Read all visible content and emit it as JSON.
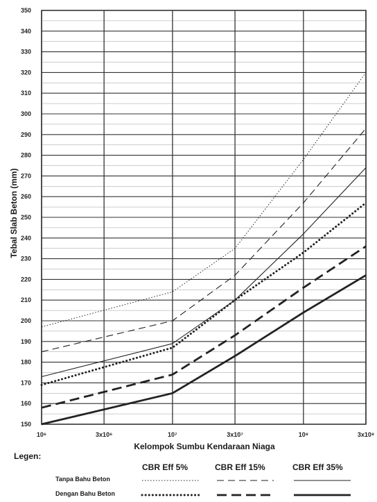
{
  "chart_data": {
    "type": "line",
    "ylabel": "Tebal Slab Beton (mm)",
    "xlabel": "Kelompok Sumbu Kendaraan Niaga",
    "x_scale": "log",
    "x_ticks": [
      {
        "value": 1000000,
        "label": "10⁶"
      },
      {
        "value": 3000000,
        "label": "3x10⁶"
      },
      {
        "value": 10000000,
        "label": "10⁷"
      },
      {
        "value": 30000000,
        "label": "3x10⁷"
      },
      {
        "value": 100000000,
        "label": "10⁸"
      },
      {
        "value": 300000000,
        "label": "3x10⁸"
      }
    ],
    "ylim": [
      150,
      350
    ],
    "y_ticks": [
      {
        "value": 350,
        "label": "350"
      },
      {
        "value": 340,
        "label": "340"
      },
      {
        "value": 330,
        "label": "330"
      },
      {
        "value": 320,
        "label": "320"
      },
      {
        "value": 310,
        "label": "310"
      },
      {
        "value": 300,
        "label": "300"
      },
      {
        "value": 290,
        "label": "290"
      },
      {
        "value": 280,
        "label": "280"
      },
      {
        "value": 270,
        "label": "270"
      },
      {
        "value": 260,
        "label": "260"
      },
      {
        "value": 250,
        "label": "250"
      },
      {
        "value": 240,
        "label": "240"
      },
      {
        "value": 230,
        "label": "230"
      },
      {
        "value": 220,
        "label": "220"
      },
      {
        "value": 210,
        "label": "210"
      },
      {
        "value": 200,
        "label": "200"
      },
      {
        "value": 190,
        "label": "190"
      },
      {
        "value": 180,
        "label": "180"
      },
      {
        "value": 170,
        "label": "170"
      },
      {
        "value": 160,
        "label": "160"
      },
      {
        "value": 150,
        "label": "150"
      }
    ],
    "grid": true,
    "series": [
      {
        "name": "CBR Eff 5% Tanpa Bahu Beton",
        "style": "dotted-thin",
        "x": [
          1000000,
          10000000,
          30000000,
          100000000,
          300000000
        ],
        "y": [
          197,
          214,
          235,
          278,
          320
        ]
      },
      {
        "name": "CBR Eff 15% Tanpa Bahu Beton",
        "style": "dashed-thin",
        "x": [
          1000000,
          10000000,
          30000000,
          100000000,
          300000000
        ],
        "y": [
          185,
          200,
          222,
          257,
          293
        ]
      },
      {
        "name": "CBR Eff 35% Tanpa Bahu Beton",
        "style": "solid-thin",
        "x": [
          1000000,
          10000000,
          30000000,
          100000000,
          300000000
        ],
        "y": [
          173,
          189,
          210,
          242,
          274
        ]
      },
      {
        "name": "CBR Eff 5% Dengan Bahu Beton",
        "style": "dotted-thick",
        "x": [
          1000000,
          10000000,
          30000000,
          100000000,
          300000000
        ],
        "y": [
          169,
          187,
          210,
          233,
          257
        ]
      },
      {
        "name": "CBR Eff 15% Dengan Bahu Beton",
        "style": "dashed-thick",
        "x": [
          1000000,
          10000000,
          30000000,
          100000000,
          300000000
        ],
        "y": [
          158,
          174,
          193,
          216,
          236
        ]
      },
      {
        "name": "CBR Eff 35% Dengan Bahu Beton",
        "style": "solid-thick",
        "x": [
          1000000,
          10000000,
          30000000,
          100000000,
          300000000
        ],
        "y": [
          150,
          165,
          183,
          204,
          222
        ]
      }
    ],
    "legend": {
      "title": "Legen:",
      "columns": [
        "CBR Eff 5%",
        "CBR Eff 15%",
        "CBR Eff 35%"
      ],
      "rows": [
        "Tanpa Bahu Beton",
        "Dengan Bahu Beton"
      ]
    },
    "colors": {
      "line": "#222222",
      "grid": "#333333",
      "background": "#ffffff"
    }
  }
}
